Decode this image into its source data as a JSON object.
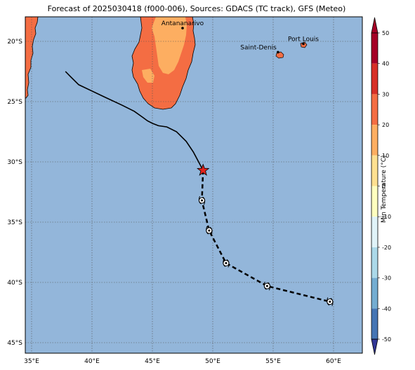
{
  "map": {
    "title": "Forecast of 2025030418 (f000-006), Sources: GDACS (TC track), GFS (Meteo)",
    "longitude_ticks": [
      "35°E",
      "40°E",
      "45°E",
      "50°E",
      "55°E",
      "60°E"
    ],
    "latitude_ticks": [
      "20°S",
      "25°S",
      "30°S",
      "35°S",
      "40°S",
      "45°S"
    ],
    "cities": [
      {
        "name": "Antananarivo",
        "lon": 47.5,
        "lat": -18.9
      },
      {
        "name": "Port Louis",
        "lon": 57.5,
        "lat": -20.2
      },
      {
        "name": "Saint-Denis",
        "lon": 55.4,
        "lat": -20.9
      }
    ],
    "current_position": {
      "lon": 49.2,
      "lat": -30.7
    },
    "forecast_points": [
      {
        "lon": 49.1,
        "lat": -33.2
      },
      {
        "lon": 49.7,
        "lat": -35.7
      },
      {
        "lon": 51.1,
        "lat": -38.4
      },
      {
        "lon": 54.5,
        "lat": -40.3
      },
      {
        "lon": 59.7,
        "lat": -41.6
      }
    ],
    "past_track": [
      {
        "lon": 37.8,
        "lat": -22.5
      },
      {
        "lon": 38.2,
        "lat": -22.9
      },
      {
        "lon": 38.9,
        "lat": -23.6
      },
      {
        "lon": 41.0,
        "lat": -24.6
      },
      {
        "lon": 42.5,
        "lat": -25.3
      },
      {
        "lon": 43.5,
        "lat": -25.8
      },
      {
        "lon": 44.2,
        "lat": -26.3
      },
      {
        "lon": 44.6,
        "lat": -26.6
      },
      {
        "lon": 45.0,
        "lat": -26.8
      },
      {
        "lon": 45.5,
        "lat": -27.0
      },
      {
        "lon": 46.2,
        "lat": -27.1
      },
      {
        "lon": 47.0,
        "lat": -27.5
      },
      {
        "lon": 47.8,
        "lat": -28.3
      },
      {
        "lon": 48.4,
        "lat": -29.2
      },
      {
        "lon": 49.2,
        "lat": -30.7
      }
    ],
    "colors": {
      "ocean": "#93b6da",
      "land_orange": "#f46d43",
      "land_light": "#fdae61",
      "track": "#000000",
      "storm_marker": "#e3231c"
    }
  },
  "colorbar": {
    "label": "Min Temperature (°C)",
    "ticks": [
      "50",
      "40",
      "30",
      "20",
      "10",
      "0",
      "-10",
      "-20",
      "-30",
      "-40",
      "-50"
    ],
    "colors": [
      "#a50026",
      "#d73027",
      "#f46d43",
      "#fdae61",
      "#fee090",
      "#ffffbf",
      "#e0f3f8",
      "#abd9e9",
      "#74add1",
      "#4575b4",
      "#313695"
    ]
  }
}
